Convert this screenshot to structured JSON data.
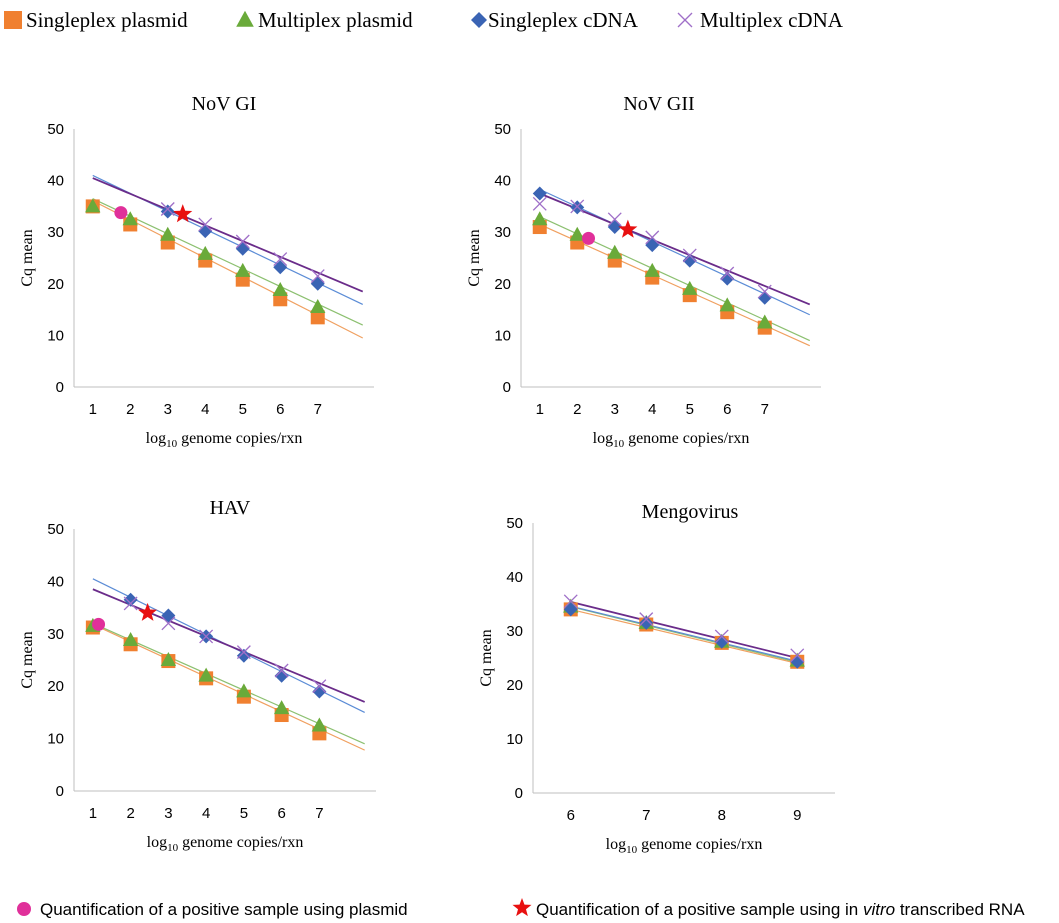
{
  "legend_top": [
    {
      "label": "Singleplex plasmid",
      "marker": "square",
      "color": "#f08030"
    },
    {
      "label": "Multiplex plasmid",
      "marker": "triangle",
      "color": "#6aaa3a"
    },
    {
      "label": "Singleplex cDNA",
      "marker": "diamond",
      "color": "#3a64b4"
    },
    {
      "label": "Multiplex cDNA",
      "marker": "x",
      "color": "#9f6fc8"
    }
  ],
  "legend_bottom": {
    "plasmid": {
      "label": "Quantification of a positive sample using plasmid",
      "marker": "circle",
      "color": "#e0309a"
    },
    "rna": {
      "prefix": "Quantification of a positive sample using in ",
      "italic": "vitro",
      "suffix": " transcribed RNA",
      "marker": "star",
      "color": "#e81010"
    }
  },
  "colors": {
    "singleplex_plasmid": "#f08030",
    "multiplex_plasmid": "#6aaa3a",
    "singleplex_cdna": "#3a64b4",
    "multiplex_cdna": "#9f6fc8",
    "singleplex_plasmid_line": "#f0a060",
    "multiplex_plasmid_line": "#8cc070",
    "singleplex_cdna_line": "#5b8cd6",
    "multiplex_cdna_line": "#6a2c8a"
  },
  "chart_data": [
    {
      "type": "scatter",
      "title": "NoV GI",
      "xlabel_main": "log",
      "xlabel_sub": "10",
      "xlabel_rest": " genome copies/rxn",
      "ylabel": "Cq mean",
      "xlim": [
        0.5,
        8.5
      ],
      "ylim": [
        0,
        50
      ],
      "xticks": [
        1,
        2,
        3,
        4,
        5,
        6,
        7
      ],
      "yticks": [
        0,
        10,
        20,
        30,
        40,
        50
      ],
      "series": [
        {
          "key": "singleplex_plasmid",
          "marker": "square",
          "x": [
            1,
            2,
            3,
            4,
            5,
            6,
            7
          ],
          "y": [
            35,
            31.5,
            28,
            24.5,
            20.8,
            17,
            13.5
          ],
          "trend": [
            1,
            36.1,
            8.2,
            9.5
          ]
        },
        {
          "key": "multiplex_plasmid",
          "marker": "triangle",
          "x": [
            1,
            2,
            3,
            4,
            5,
            6,
            7
          ],
          "y": [
            35,
            32.5,
            29.5,
            25.8,
            22.5,
            18.8,
            15.5
          ],
          "trend": [
            1,
            36.5,
            8.2,
            12
          ]
        },
        {
          "key": "singleplex_cdna",
          "marker": "diamond",
          "x": [
            3,
            4,
            5,
            6,
            7
          ],
          "y": [
            34,
            30.2,
            26.8,
            23.2,
            20
          ],
          "trend": [
            1,
            41,
            8.2,
            16
          ]
        },
        {
          "key": "multiplex_cdna",
          "marker": "x",
          "x": [
            3,
            4,
            5,
            6,
            7
          ],
          "y": [
            34.5,
            31.5,
            28.2,
            24.8,
            21.5
          ],
          "trend": [
            1,
            40.5,
            8.2,
            18.5
          ]
        }
      ],
      "special": [
        {
          "marker": "circle",
          "x": 1.75,
          "y": 33.8
        },
        {
          "marker": "star",
          "x": 3.4,
          "y": 33.5
        }
      ]
    },
    {
      "type": "scatter",
      "title": "NoV GII",
      "xlabel_main": "log",
      "xlabel_sub": "10",
      "xlabel_rest": " genome copies/rxn",
      "ylabel": "Cq mean",
      "xlim": [
        0.5,
        8.5
      ],
      "ylim": [
        0,
        50
      ],
      "xticks": [
        1,
        2,
        3,
        4,
        5,
        6,
        7
      ],
      "yticks": [
        0,
        10,
        20,
        30,
        40,
        50
      ],
      "series": [
        {
          "key": "singleplex_plasmid",
          "marker": "square",
          "x": [
            1,
            2,
            3,
            4,
            5,
            6,
            7
          ],
          "y": [
            31,
            28,
            24.5,
            21.2,
            17.8,
            14.5,
            11.5
          ],
          "trend": [
            1,
            31.5,
            8.2,
            8
          ]
        },
        {
          "key": "multiplex_plasmid",
          "marker": "triangle",
          "x": [
            1,
            2,
            3,
            4,
            5,
            6,
            7
          ],
          "y": [
            32.5,
            29.5,
            26,
            22.5,
            19,
            15.8,
            12.5
          ],
          "trend": [
            1,
            33,
            8.2,
            9
          ]
        },
        {
          "key": "singleplex_cdna",
          "marker": "diamond",
          "x": [
            1,
            2,
            3,
            4,
            5,
            6,
            7
          ],
          "y": [
            37.5,
            34.8,
            31,
            27.5,
            24.5,
            21,
            17.3
          ],
          "trend": [
            1,
            38.3,
            8.2,
            14
          ]
        },
        {
          "key": "multiplex_cdna",
          "marker": "x",
          "x": [
            1,
            2,
            3,
            4,
            5,
            6,
            7
          ],
          "y": [
            35.5,
            35,
            32.5,
            29,
            25.5,
            22,
            18.5
          ],
          "trend": [
            1,
            37.5,
            8.2,
            16
          ]
        }
      ],
      "special": [
        {
          "marker": "circle",
          "x": 2.3,
          "y": 28.8
        },
        {
          "marker": "star",
          "x": 3.35,
          "y": 30.5
        }
      ]
    },
    {
      "type": "scatter",
      "title": "HAV",
      "xlabel_main": "log",
      "xlabel_sub": "10",
      "xlabel_rest": " genome copies/rxn",
      "ylabel": "Cq mean",
      "xlim": [
        0.5,
        8.5
      ],
      "ylim": [
        0,
        50
      ],
      "xticks": [
        1,
        2,
        3,
        4,
        5,
        6,
        7
      ],
      "yticks": [
        0,
        10,
        20,
        30,
        40,
        50
      ],
      "series": [
        {
          "key": "singleplex_plasmid",
          "marker": "square",
          "x": [
            1,
            2,
            3,
            4,
            5,
            6,
            7
          ],
          "y": [
            31.2,
            28,
            24.8,
            21.5,
            18,
            14.5,
            11
          ],
          "trend": [
            1,
            31.8,
            8.2,
            7.8
          ]
        },
        {
          "key": "multiplex_plasmid",
          "marker": "triangle",
          "x": [
            1,
            2,
            3,
            4,
            5,
            6,
            7
          ],
          "y": [
            31.5,
            28.8,
            25,
            22,
            19,
            15.8,
            12.5
          ],
          "trend": [
            1,
            32,
            8.2,
            9
          ]
        },
        {
          "key": "singleplex_cdna",
          "marker": "diamond",
          "x": [
            2,
            3,
            4,
            5,
            6,
            7
          ],
          "y": [
            36.5,
            33.5,
            29.5,
            25.8,
            22,
            19
          ],
          "trend": [
            1,
            40.5,
            8.2,
            15
          ]
        },
        {
          "key": "multiplex_cdna",
          "marker": "x",
          "x": [
            2,
            3,
            4,
            5,
            6,
            7
          ],
          "y": [
            35.8,
            32,
            29.5,
            26.5,
            23,
            20
          ],
          "trend": [
            1,
            38.5,
            8.2,
            17
          ]
        }
      ],
      "special": [
        {
          "marker": "circle",
          "x": 1.15,
          "y": 31.8
        },
        {
          "marker": "star",
          "x": 2.45,
          "y": 34
        }
      ]
    },
    {
      "type": "scatter",
      "title": "Mengovirus",
      "xlabel_main": "log",
      "xlabel_sub": "10",
      "xlabel_rest": " genome copies/rxn",
      "ylabel": "Cq mean",
      "xlim": [
        5.5,
        9.5
      ],
      "ylim": [
        0,
        50
      ],
      "xticks": [
        6,
        7,
        8,
        9
      ],
      "yticks": [
        0,
        10,
        20,
        30,
        40,
        50
      ],
      "series": [
        {
          "key": "singleplex_plasmid",
          "marker": "square",
          "x": [
            6,
            7,
            8,
            9
          ],
          "y": [
            34,
            31.2,
            27.8,
            24.3
          ],
          "trend": [
            6,
            34,
            9,
            24
          ]
        },
        {
          "key": "multiplex_plasmid",
          "marker": "triangle",
          "x": [
            6,
            7,
            8,
            9
          ],
          "y": [
            34.5,
            31.5,
            28,
            24.5
          ],
          "trend": [
            6,
            34.5,
            9,
            24.2
          ]
        },
        {
          "key": "singleplex_cdna",
          "marker": "diamond",
          "x": [
            6,
            7,
            8,
            9
          ],
          "y": [
            34,
            31.5,
            28,
            24.3
          ],
          "trend": [
            6,
            34.6,
            9,
            24.4
          ]
        },
        {
          "key": "multiplex_cdna",
          "marker": "x",
          "x": [
            6,
            7,
            8,
            9
          ],
          "y": [
            35.5,
            32.2,
            29,
            25.5
          ],
          "trend": [
            6,
            35.4,
            9,
            25
          ]
        }
      ],
      "special": []
    }
  ]
}
